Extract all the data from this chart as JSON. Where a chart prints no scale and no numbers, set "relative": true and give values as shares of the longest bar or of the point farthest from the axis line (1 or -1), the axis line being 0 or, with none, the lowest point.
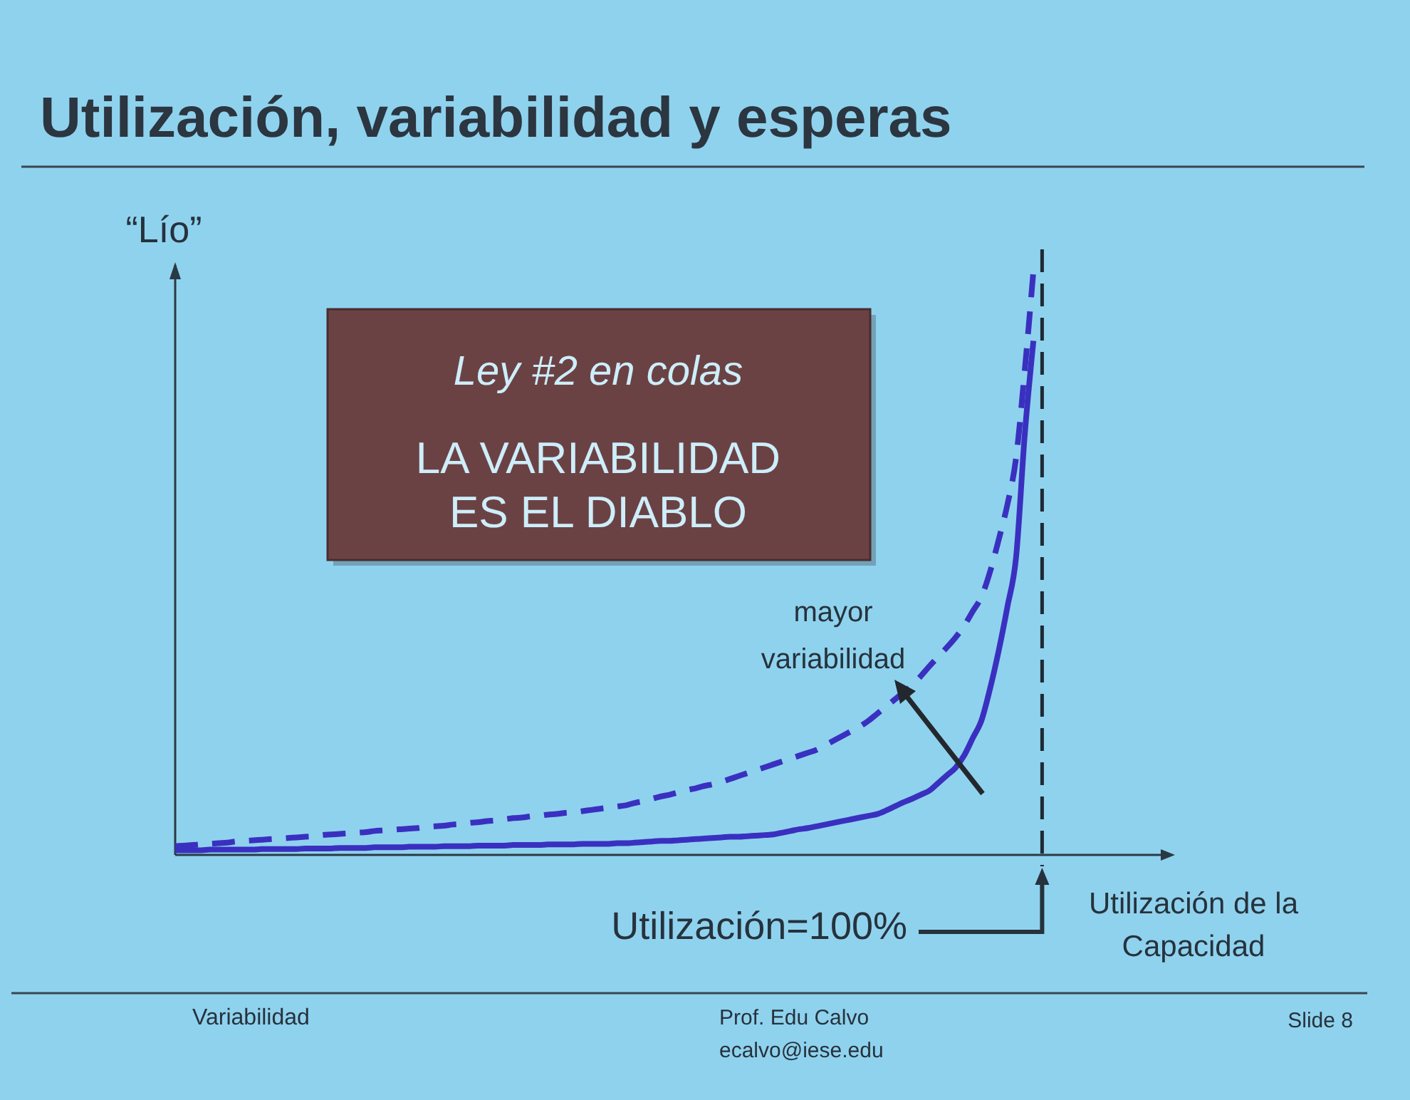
{
  "chart_data": {
    "type": "line",
    "title": "Utilización, variabilidad y esperas",
    "ylabel": "“Lío”",
    "xlabel": "Utilización de la Capacidad",
    "relative": true,
    "categories": [
      null,
      null,
      null,
      null,
      null,
      null,
      null,
      null,
      null,
      null,
      null,
      null,
      null,
      null,
      null,
      null,
      null,
      null,
      null,
      null,
      null,
      null,
      null,
      null,
      null,
      null,
      null,
      null,
      null,
      null,
      null,
      null,
      null,
      null,
      null,
      null,
      null,
      null,
      null,
      null,
      null,
      null,
      null,
      null,
      null,
      null,
      null,
      null,
      null,
      null,
      null,
      null,
      null,
      null,
      null,
      null,
      null,
      null,
      null,
      null,
      null,
      null,
      null,
      null,
      null,
      null,
      null,
      null,
      null,
      null,
      null,
      null,
      null,
      null,
      null,
      null,
      null,
      null,
      null,
      null,
      null,
      null,
      null,
      null,
      null,
      null,
      null,
      null,
      null,
      null,
      null,
      null,
      null,
      null,
      null,
      null,
      null,
      null,
      null,
      null,
      null,
      null,
      null,
      null,
      null,
      null,
      null,
      null,
      null,
      null,
      null,
      null,
      null,
      null,
      null,
      null
    ],
    "series": [
      {
        "color": "#3a30c0",
        "line_style": "solid",
        "values": [
          0.008,
          0.008,
          0.008,
          0.008,
          0.009,
          0.009,
          0.009,
          0.009,
          0.009,
          0.009,
          0.01,
          0.01,
          0.01,
          0.01,
          0.01,
          0.011,
          0.011,
          0.011,
          0.011,
          0.012,
          0.012,
          0.012,
          0.012,
          0.013,
          0.013,
          0.013,
          0.013,
          0.014,
          0.014,
          0.014,
          0.014,
          0.015,
          0.015,
          0.015,
          0.015,
          0.016,
          0.016,
          0.016,
          0.016,
          0.017,
          0.017,
          0.017,
          0.017,
          0.018,
          0.018,
          0.018,
          0.018,
          0.019,
          0.019,
          0.019,
          0.019,
          0.02,
          0.02,
          0.021,
          0.022,
          0.023,
          0.024,
          0.024,
          0.025,
          0.026,
          0.027,
          0.028,
          0.029,
          0.03,
          0.031,
          0.031,
          0.032,
          0.033,
          0.034,
          0.035,
          0.038,
          0.041,
          0.044,
          0.046,
          0.049,
          0.052,
          0.055,
          0.058,
          0.061,
          0.064,
          0.067,
          0.07,
          0.076,
          0.083,
          0.09,
          0.096,
          0.103,
          0.11,
          0.123,
          0.136,
          0.149,
          0.17,
          0.2,
          0.23,
          0.285,
          0.35,
          0.425,
          0.51,
          0.72,
          0.88,
          null,
          null,
          null,
          null,
          null,
          null,
          null,
          null,
          null,
          null,
          null,
          null,
          null,
          null,
          null,
          null
        ]
      },
      {
        "color": "#3a30c0",
        "line_style": "dashed",
        "values": [
          0.015,
          0.016,
          0.017,
          0.018,
          0.019,
          0.02,
          0.021,
          0.023,
          0.024,
          0.025,
          0.026,
          0.027,
          0.028,
          0.029,
          0.03,
          0.031,
          0.032,
          0.034,
          0.035,
          0.036,
          0.037,
          0.038,
          0.039,
          0.041,
          0.042,
          0.043,
          0.044,
          0.045,
          0.046,
          0.048,
          0.049,
          0.05,
          0.052,
          0.053,
          0.055,
          0.056,
          0.058,
          0.059,
          0.061,
          0.063,
          0.064,
          0.066,
          0.067,
          0.069,
          0.07,
          0.072,
          0.073,
          0.075,
          0.077,
          0.079,
          0.081,
          0.083,
          0.085,
          0.089,
          0.092,
          0.096,
          0.1,
          0.103,
          0.107,
          0.111,
          0.114,
          0.118,
          0.121,
          0.125,
          0.13,
          0.135,
          0.14,
          0.145,
          0.15,
          0.155,
          0.16,
          0.165,
          0.17,
          0.175,
          0.18,
          0.188,
          0.196,
          0.204,
          0.212,
          0.22,
          0.23,
          0.242,
          0.254,
          0.266,
          0.278,
          0.29,
          0.306,
          0.323,
          0.339,
          0.355,
          0.372,
          0.392,
          0.417,
          0.442,
          0.485,
          0.54,
          0.6,
          0.68,
          0.83,
          1.0,
          null,
          null,
          null,
          null,
          null,
          null,
          null,
          null,
          null,
          null,
          null,
          null,
          null,
          null,
          null,
          null
        ]
      }
    ],
    "ref_lines": [
      {
        "axis": "x",
        "label": "Utilización=100%",
        "color": "#1e2a35",
        "line_style": "dashed"
      }
    ],
    "annotations": [
      "Ley #2 en colas",
      "LA VARIABILIDAD ES EL DIABLO",
      "mayor variabilidad",
      "Variabilidad",
      "Prof. Edu Calvo",
      "ecalvo@iese.edu",
      "Slide 8"
    ]
  }
}
